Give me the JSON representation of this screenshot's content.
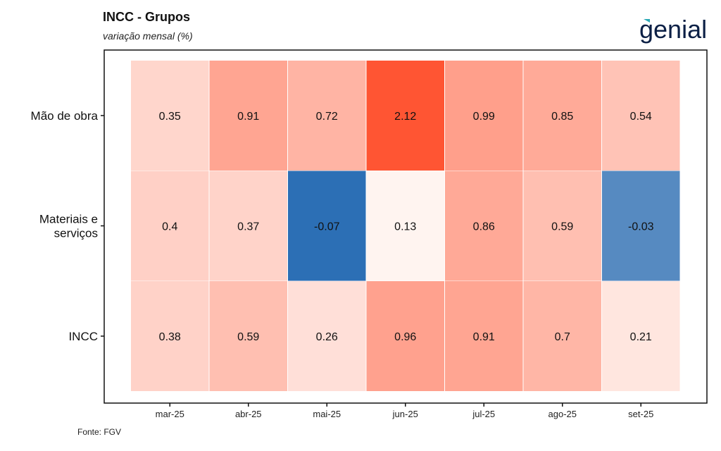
{
  "header": {
    "title": "INCC - Grupos",
    "subtitle": "variação mensal (%)"
  },
  "logo": {
    "text": "genial",
    "color": "#0b1f45",
    "accent": "#2aa8b5"
  },
  "footer": {
    "source": "Fonte: FGV"
  },
  "chart_data": {
    "type": "heatmap",
    "title": "INCC - Grupos",
    "subtitle": "variação mensal (%)",
    "x": [
      "mar-25",
      "abr-25",
      "mai-25",
      "jun-25",
      "jul-25",
      "ago-25",
      "set-25"
    ],
    "y": [
      "Mão de obra",
      "Materiais e serviços",
      "INCC"
    ],
    "y_label_lines": [
      [
        "Mão de obra"
      ],
      [
        "Materiais e",
        "serviços"
      ],
      [
        "INCC"
      ]
    ],
    "values": [
      [
        0.35,
        0.91,
        0.72,
        2.12,
        0.99,
        0.85,
        0.54
      ],
      [
        0.4,
        0.37,
        -0.07,
        0.13,
        0.86,
        0.59,
        -0.03
      ],
      [
        0.38,
        0.59,
        0.26,
        0.96,
        0.91,
        0.7,
        0.21
      ]
    ],
    "value_labels": [
      [
        "0.35",
        "0.91",
        "0.72",
        "2.12",
        "0.99",
        "0.85",
        "0.54"
      ],
      [
        "0.4",
        "0.37",
        "-0.07",
        "0.13",
        "0.86",
        "0.59",
        "-0.03"
      ],
      [
        "0.38",
        "0.59",
        "0.26",
        "0.96",
        "0.91",
        "0.7",
        "0.21"
      ]
    ],
    "color_scale": {
      "low": "#2c6fb5",
      "mid": "#fff4f0",
      "high": "#ff5533",
      "mid_value": 0.13
    },
    "xlabel": "",
    "ylabel": "",
    "grid": false,
    "legend": "none"
  }
}
